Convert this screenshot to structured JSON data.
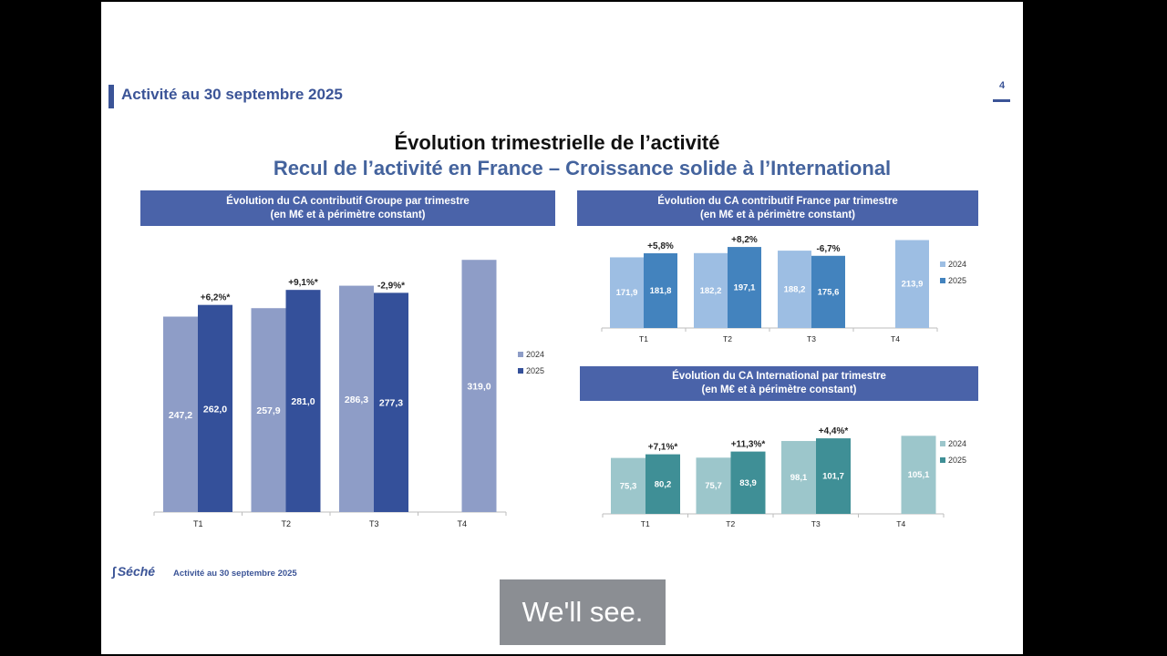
{
  "header": {
    "title": "Activité au 30 septembre 2025",
    "page_number": "4"
  },
  "title": "Évolution trimestrielle de l’activité",
  "subtitle": "Recul de l’activité en France – Croissance solide à l’International",
  "footer": {
    "logo": "Séché",
    "text": "Activité au 30 septembre 2025"
  },
  "caption": "We'll see.",
  "colors": {
    "groupe_2024": "#8e9dc7",
    "groupe_2025": "#34509a",
    "france_2024": "#9dbee3",
    "france_2025": "#4383be",
    "intl_2024": "#9cc6cb",
    "intl_2025": "#3f8f96",
    "header_blue": "#4a63a9"
  },
  "chart_data": [
    {
      "id": "groupe",
      "type": "bar",
      "title_line1": "Évolution du CA contributif Groupe par trimestre",
      "title_line2": "(en M€ et à périmètre constant)",
      "categories": [
        "T1",
        "T2",
        "T3",
        "T4"
      ],
      "series": [
        {
          "name": "2024",
          "values": [
            247.2,
            257.9,
            286.3,
            319.0
          ]
        },
        {
          "name": "2025",
          "values": [
            262.0,
            281.0,
            277.3,
            null
          ]
        }
      ],
      "annotations": [
        "+6,2%*",
        "+9,1%*",
        "-2,9%*",
        ""
      ],
      "ylim": [
        0,
        325
      ]
    },
    {
      "id": "france",
      "type": "bar",
      "title_line1": "Évolution du CA contributif France par trimestre",
      "title_line2": "(en M€ et à périmètre constant)",
      "categories": [
        "T1",
        "T2",
        "T3",
        "T4"
      ],
      "series": [
        {
          "name": "2024",
          "values": [
            171.9,
            182.2,
            188.2,
            213.9
          ]
        },
        {
          "name": "2025",
          "values": [
            181.8,
            197.1,
            175.6,
            null
          ]
        }
      ],
      "annotations": [
        "+5,8%",
        "+8,2%",
        "-6,7%",
        ""
      ],
      "ylim": [
        0,
        215
      ]
    },
    {
      "id": "intl",
      "type": "bar",
      "title_line1": "Évolution du CA International par trimestre",
      "title_line2": "(en M€ et à périmètre constant)",
      "categories": [
        "T1",
        "T2",
        "T3",
        "T4"
      ],
      "series": [
        {
          "name": "2024",
          "values": [
            75.3,
            75.7,
            98.1,
            105.1
          ]
        },
        {
          "name": "2025",
          "values": [
            80.2,
            83.9,
            101.7,
            null
          ]
        }
      ],
      "annotations": [
        "+7,1%*",
        "+11,3%*",
        "+4,4%*",
        ""
      ],
      "ylim": [
        0,
        105.5
      ]
    }
  ]
}
